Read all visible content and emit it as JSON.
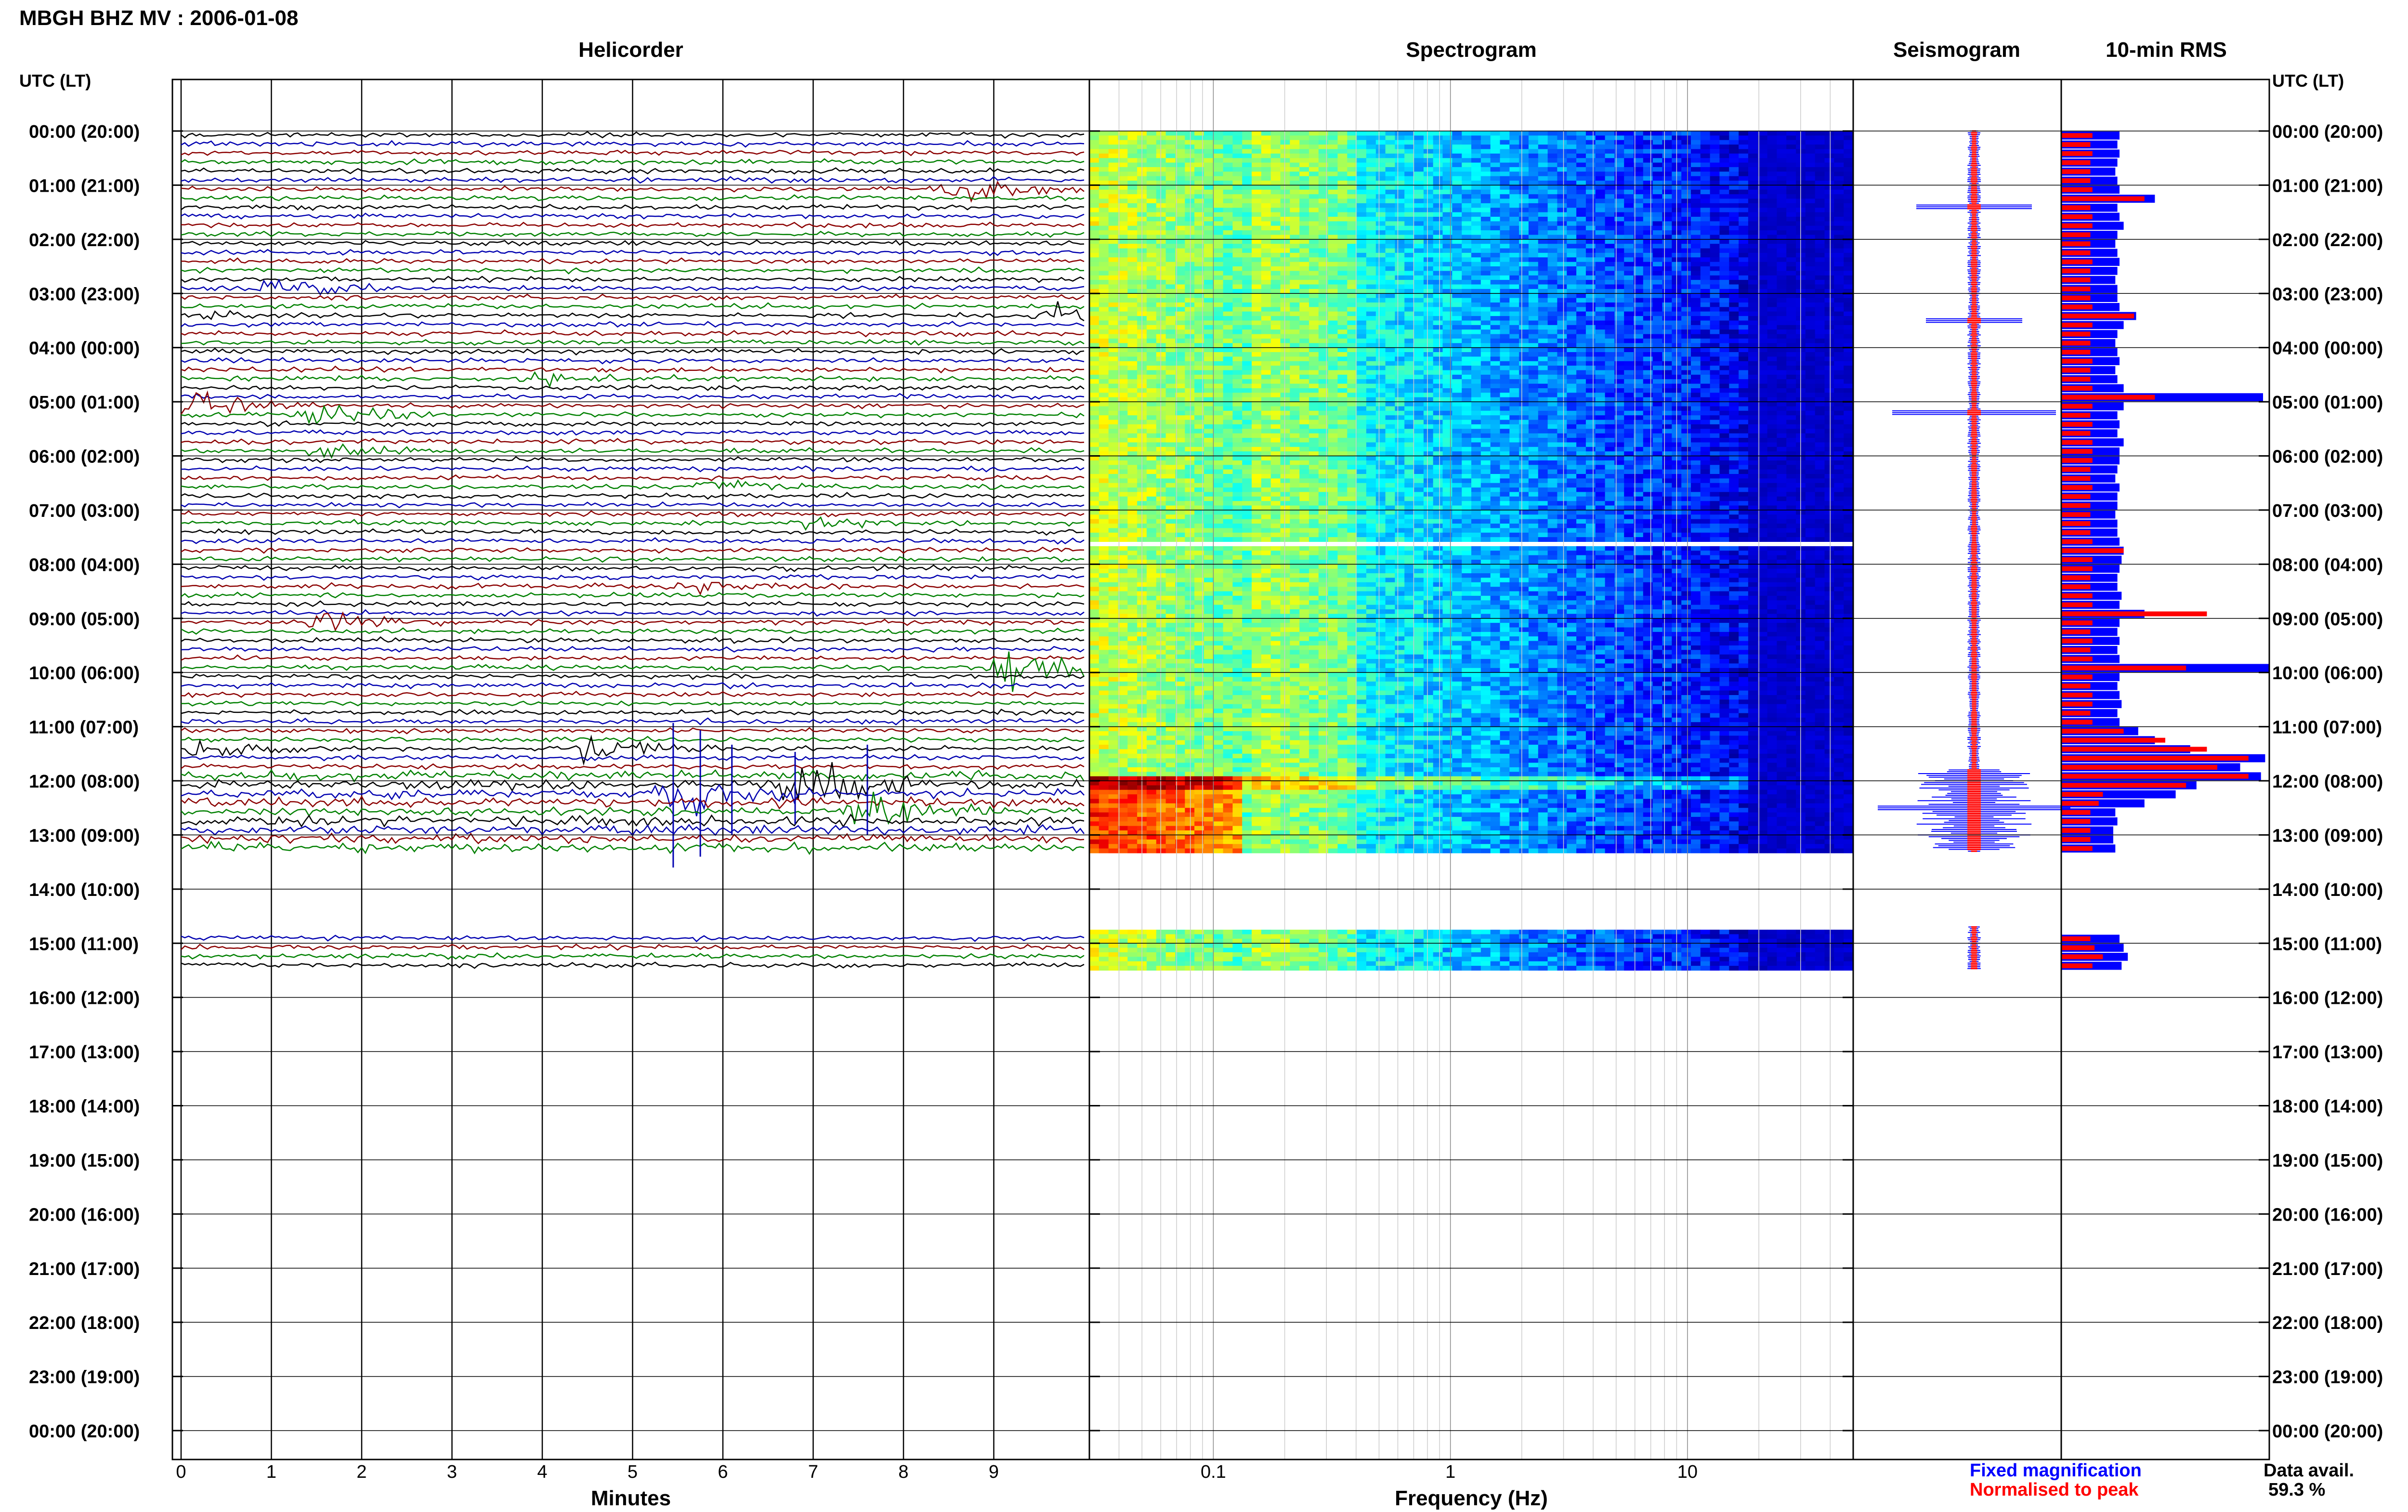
{
  "header": {
    "station_title": "MBGH BHZ MV : 2006-01-08"
  },
  "panels": {
    "helicorder": "Helicorder",
    "spectrogram": "Spectrogram",
    "seismogram": "Seismogram",
    "rms": "10-min RMS"
  },
  "axis": {
    "utc_label_left": "UTC (LT)",
    "utc_label_right": "UTC (LT)",
    "minutes_label": "Minutes",
    "frequency_label": "Frequency (Hz)"
  },
  "legend": {
    "fixed": "Fixed magnification",
    "normalised": "Normalised to peak",
    "fixed_color": "#0000ff",
    "normalised_color": "#ff0000"
  },
  "availability": {
    "label": "Data avail.",
    "value": "59.3 %"
  },
  "chart_data": {
    "type": "seismic-daily-summary",
    "time_labels": [
      "00:00 (20:00)",
      "01:00 (21:00)",
      "02:00 (22:00)",
      "03:00 (23:00)",
      "04:00 (00:00)",
      "05:00 (01:00)",
      "06:00 (02:00)",
      "07:00 (03:00)",
      "08:00 (04:00)",
      "09:00 (05:00)",
      "10:00 (06:00)",
      "11:00 (07:00)",
      "12:00 (08:00)",
      "13:00 (09:00)",
      "14:00 (10:00)",
      "15:00 (11:00)",
      "16:00 (12:00)",
      "17:00 (13:00)",
      "18:00 (14:00)",
      "19:00 (15:00)",
      "20:00 (16:00)",
      "21:00 (17:00)",
      "22:00 (18:00)",
      "23:00 (19:00)",
      "00:00 (20:00)"
    ],
    "minute_ticks": [
      "0",
      "1",
      "2",
      "3",
      "4",
      "5",
      "6",
      "7",
      "8",
      "9"
    ],
    "frequency_ticks": [
      "0.1",
      "1",
      "10"
    ],
    "frequency_range_hz": [
      0.03,
      50
    ],
    "data_hours": [
      [
        0,
        13.33
      ],
      [
        14.67,
        15.5
      ]
    ],
    "trace_colors": [
      "#000000",
      "#0000b0",
      "#8b0000",
      "#008000"
    ],
    "spectrogram_gap_hour": 7.6,
    "rms_blue": [
      0.28,
      0.27,
      0.28,
      0.27,
      0.26,
      0.27,
      0.28,
      0.45,
      0.27,
      0.28,
      0.3,
      0.27,
      0.26,
      0.27,
      0.28,
      0.27,
      0.26,
      0.27,
      0.27,
      0.28,
      0.36,
      0.3,
      0.27,
      0.26,
      0.27,
      0.28,
      0.26,
      0.27,
      0.3,
      0.97,
      0.3,
      0.27,
      0.28,
      0.27,
      0.3,
      0.28,
      0.28,
      0.27,
      0.26,
      0.28,
      0.27,
      0.27,
      0.26,
      0.27,
      0.27,
      0.28,
      0.3,
      0.29,
      0.28,
      0.27,
      0.27,
      0.29,
      0.28,
      0.4,
      0.28,
      0.27,
      0.28,
      0.27,
      0.28,
      1.0,
      0.28,
      0.27,
      0.28,
      0.29,
      0.27,
      0.28,
      0.37,
      0.45,
      0.62,
      0.98,
      0.86,
      0.96,
      0.65,
      0.55,
      0.4,
      0.26,
      0.27,
      0.25,
      0.25,
      0.26,
      0.28,
      0.3,
      0.32,
      0.29,
      0.28,
      0.27,
      0.29,
      0.3,
      0.28,
      0.25
    ],
    "rms_red": [
      0.15,
      0.14,
      0.15,
      0.14,
      0.14,
      0.14,
      0.15,
      0.4,
      0.14,
      0.15,
      0.15,
      0.14,
      0.14,
      0.14,
      0.15,
      0.14,
      0.14,
      0.14,
      0.14,
      0.15,
      0.35,
      0.15,
      0.14,
      0.14,
      0.14,
      0.15,
      0.14,
      0.14,
      0.15,
      0.45,
      0.15,
      0.14,
      0.15,
      0.14,
      0.15,
      0.15,
      0.15,
      0.14,
      0.14,
      0.15,
      0.14,
      0.14,
      0.14,
      0.14,
      0.14,
      0.15,
      0.3,
      0.15,
      0.15,
      0.14,
      0.14,
      0.15,
      0.15,
      0.7,
      0.15,
      0.14,
      0.15,
      0.14,
      0.15,
      0.6,
      0.15,
      0.14,
      0.15,
      0.15,
      0.14,
      0.15,
      0.3,
      0.5,
      0.7,
      0.9,
      0.75,
      0.9,
      0.6,
      0.2,
      0.18,
      0.14,
      0.14,
      0.14,
      0.14,
      0.15,
      0.14,
      0.16,
      0.2,
      0.15,
      0.15,
      0.14,
      0.18,
      0.22,
      0.14,
      0.13
    ]
  }
}
